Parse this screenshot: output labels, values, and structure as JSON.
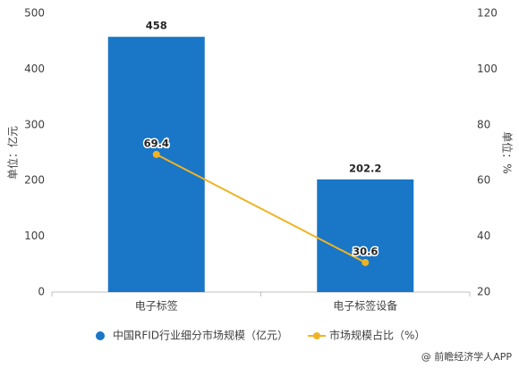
{
  "chart_data": {
    "type": "bar",
    "categories": [
      "电子标签",
      "电子标签设备"
    ],
    "series": [
      {
        "name": "中国RFID行业细分市场规模（亿元）",
        "color": "#1a76c6",
        "values": [
          458,
          202.2
        ]
      },
      {
        "name": "市场规模占比（%）",
        "color": "#f0b323",
        "values": [
          69.4,
          30.6
        ],
        "axis": "y2",
        "type": "line"
      }
    ],
    "ylabel": "单位：亿元",
    "y2label": "单位：%",
    "ylim": [
      0,
      500
    ],
    "yticks": [
      0,
      100,
      200,
      300,
      400,
      500
    ],
    "y2lim": [
      20,
      120
    ],
    "y2ticks": [
      20,
      40,
      60,
      80,
      100,
      120
    ],
    "legend": "bottom",
    "source": "@ 前瞻经济学人APP"
  }
}
